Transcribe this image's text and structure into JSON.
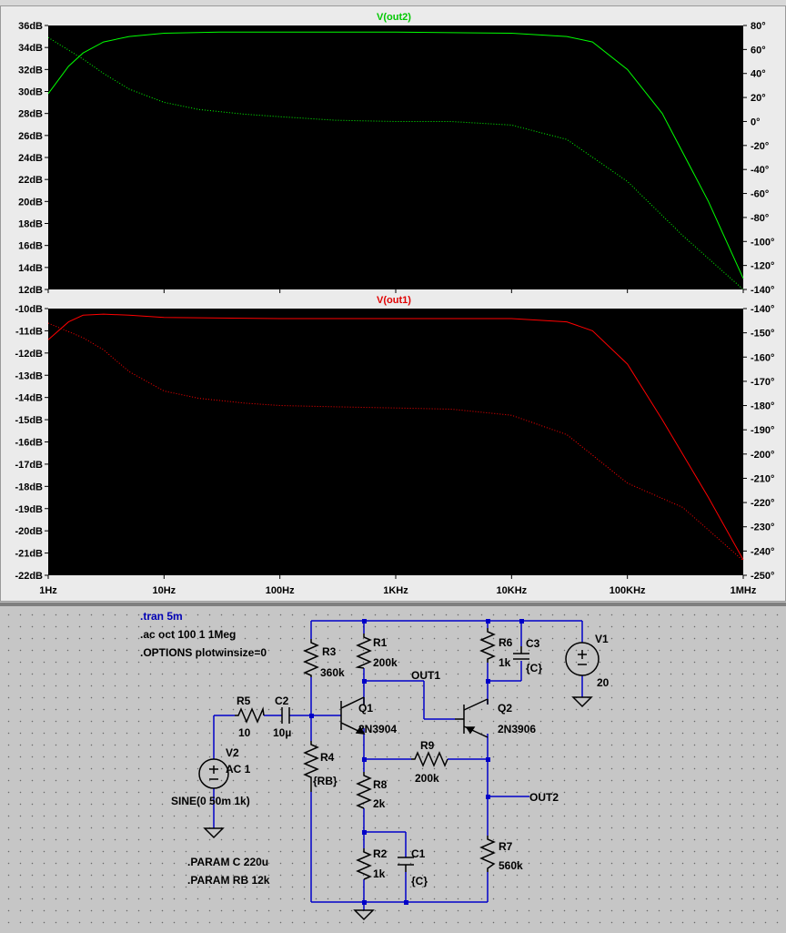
{
  "plots": [
    {
      "trace_name": "V(out2)",
      "trace_color": "#00ff00",
      "left_ticks": [
        "36dB",
        "34dB",
        "32dB",
        "30dB",
        "28dB",
        "26dB",
        "24dB",
        "22dB",
        "20dB",
        "18dB",
        "16dB",
        "14dB",
        "12dB"
      ],
      "right_ticks": [
        "80°",
        "60°",
        "40°",
        "20°",
        "0°",
        "-20°",
        "-40°",
        "-60°",
        "-80°",
        "-100°",
        "-120°",
        "-140°"
      ]
    },
    {
      "trace_name": "V(out1)",
      "trace_color": "#ff0000",
      "left_ticks": [
        "-10dB",
        "-11dB",
        "-12dB",
        "-13dB",
        "-14dB",
        "-15dB",
        "-16dB",
        "-17dB",
        "-18dB",
        "-19dB",
        "-20dB",
        "-21dB",
        "-22dB"
      ],
      "right_ticks": [
        "-140°",
        "-150°",
        "-160°",
        "-170°",
        "-180°",
        "-190°",
        "-200°",
        "-210°",
        "-220°",
        "-230°",
        "-240°",
        "-250°"
      ]
    }
  ],
  "x_ticks": [
    "1Hz",
    "10Hz",
    "100Hz",
    "1KHz",
    "10KHz",
    "100KHz",
    "1MHz"
  ],
  "chart_data": [
    {
      "type": "line",
      "title": "V(out2)",
      "xscale": "log",
      "xlim": [
        1,
        1000000
      ],
      "ylim_left_db": [
        12,
        36
      ],
      "ylim_right_deg": [
        -140,
        80
      ],
      "grid": false,
      "series": [
        {
          "name": "V(out2)",
          "style": "solid",
          "axis": "left",
          "x": [
            1,
            1.5,
            2,
            3,
            5,
            10,
            30,
            100,
            1000,
            10000,
            30000,
            50000,
            100000,
            200000,
            500000,
            1000000
          ],
          "y": [
            29.8,
            32.3,
            33.5,
            34.5,
            35.0,
            35.3,
            35.4,
            35.4,
            35.4,
            35.3,
            35.0,
            34.5,
            32.0,
            28.0,
            20.0,
            13.0
          ]
        },
        {
          "name": "V(out2)",
          "style": "dotted",
          "axis": "right",
          "x": [
            1,
            2,
            3,
            5,
            10,
            20,
            50,
            100,
            300,
            1000,
            3000,
            10000,
            30000,
            100000,
            300000,
            1000000
          ],
          "y": [
            70,
            52,
            40,
            27,
            16,
            10,
            6,
            4,
            1,
            0,
            0,
            -3,
            -15,
            -50,
            -95,
            -140
          ]
        }
      ]
    },
    {
      "type": "line",
      "title": "V(out1)",
      "xscale": "log",
      "xlim": [
        1,
        1000000
      ],
      "ylim_left_db": [
        -22,
        -10
      ],
      "ylim_right_deg": [
        -250,
        -140
      ],
      "grid": false,
      "series": [
        {
          "name": "V(out1)",
          "style": "solid",
          "axis": "left",
          "x": [
            1,
            1.5,
            2,
            3,
            5,
            10,
            100,
            1000,
            10000,
            30000,
            50000,
            100000,
            200000,
            500000,
            1000000
          ],
          "y": [
            -11.4,
            -10.6,
            -10.3,
            -10.25,
            -10.3,
            -10.4,
            -10.45,
            -10.45,
            -10.45,
            -10.6,
            -11.0,
            -12.5,
            -15.0,
            -18.5,
            -21.3
          ]
        },
        {
          "name": "V(out1)",
          "style": "dotted",
          "axis": "right",
          "x": [
            1,
            2,
            3,
            5,
            10,
            20,
            50,
            100,
            300,
            1000,
            3000,
            10000,
            30000,
            100000,
            300000,
            1000000
          ],
          "y": [
            -146,
            -152,
            -157,
            -166,
            -174,
            -177,
            -179,
            -180,
            -180.5,
            -181,
            -181.5,
            -184,
            -192,
            -212,
            -222,
            -244
          ]
        }
      ]
    }
  ],
  "schematic": {
    "directives": {
      "tran": ".tran 5m",
      "ac": ".ac oct 100 1 1Meg",
      "options": ".OPTIONS plotwinsize=0",
      "param_c": ".PARAM C 220u",
      "param_rb": ".PARAM RB 12k"
    },
    "labels": {
      "r1": "R1",
      "r1_val": "200k",
      "r2": "R2",
      "r2_val": "1k",
      "r3": "R3",
      "r3_val": "360k",
      "r4": "R4",
      "r4_val": "{RB}",
      "r5": "R5",
      "r5_val": "10",
      "r6": "R6",
      "r6_val": "1k",
      "r7": "R7",
      "r7_val": "560k",
      "r8": "R8",
      "r8_val": "2k",
      "r9": "R9",
      "r9_val": "200k",
      "c1": "C1",
      "c1_val": "{C}",
      "c2": "C2",
      "c2_val": "10µ",
      "c3": "C3",
      "c3_val": "{C}",
      "q1": "Q1",
      "q1_val": "2N3904",
      "q2": "Q2",
      "q2_val": "2N3906",
      "v1": "V1",
      "v1_val": "20",
      "v2": "V2",
      "v2_val": "AC 1",
      "v2_sine": "SINE(0 50m 1k)",
      "out1": "OUT1",
      "out2": "OUT2"
    }
  }
}
